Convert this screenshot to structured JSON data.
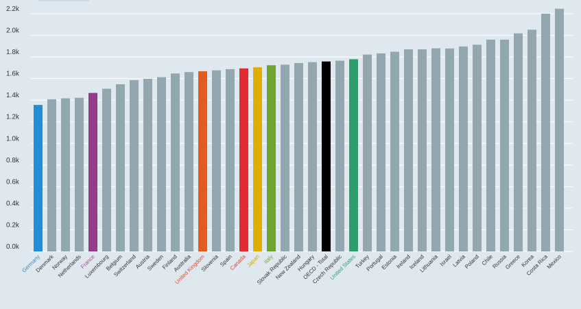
{
  "chart_data": {
    "type": "bar",
    "title": "",
    "xlabel": "",
    "ylabel": "",
    "ylim": [
      0,
      2200
    ],
    "grid": true,
    "y_ticks": [
      {
        "value": 0,
        "label": "0.0k"
      },
      {
        "value": 200,
        "label": "0.2k"
      },
      {
        "value": 400,
        "label": "0.4k"
      },
      {
        "value": 600,
        "label": "0.6k"
      },
      {
        "value": 800,
        "label": "0.8k"
      },
      {
        "value": 1000,
        "label": "1.0k"
      },
      {
        "value": 1200,
        "label": "1.2k"
      },
      {
        "value": 1400,
        "label": "1.4k"
      },
      {
        "value": 1600,
        "label": "1.6k"
      },
      {
        "value": 1800,
        "label": "1.8k"
      },
      {
        "value": 2000,
        "label": "2.0k"
      },
      {
        "value": 2200,
        "label": "2.2k"
      }
    ],
    "categories": [
      "Germany",
      "Denmark",
      "Norway",
      "Netherlands",
      "France",
      "Luxembourg",
      "Belgium",
      "Switzerland",
      "Austria",
      "Sweden",
      "Finland",
      "Australia",
      "United Kingdom",
      "Slovenia",
      "Spain",
      "Canada",
      "Japan",
      "Italy",
      "Slovak Republic",
      "New Zealand",
      "Hungary",
      "OECD - Total",
      "Czech Republic",
      "United States",
      "Turkey",
      "Portugal",
      "Estonia",
      "Ireland",
      "Iceland",
      "Lithuania",
      "Israel",
      "Latvia",
      "Poland",
      "Chile",
      "Russia",
      "Greece",
      "Korea",
      "Costa Rica",
      "Mexico"
    ],
    "values": [
      1356,
      1408,
      1417,
      1422,
      1467,
      1506,
      1547,
      1585,
      1598,
      1613,
      1647,
      1660,
      1667,
      1676,
      1687,
      1694,
      1704,
      1723,
      1728,
      1744,
      1752,
      1758,
      1765,
      1779,
      1822,
      1833,
      1848,
      1870,
      1870,
      1880,
      1878,
      1897,
      1913,
      1960,
      1960,
      2018,
      2052,
      2200,
      2246
    ],
    "highlight_colors": {
      "Germany": "#1f8ed6",
      "France": "#943b8b",
      "United Kingdom": "#e35b1f",
      "Canada": "#e12c31",
      "Japan": "#e0ac06",
      "Italy": "#6fa42d",
      "OECD - Total": "#000000",
      "United States": "#2ba06b"
    },
    "default_bar_color": "#93a7b1",
    "label_colors": {
      "Germany": "#2f8fd6",
      "France": "#b2479e",
      "United Kingdom": "#e24a32",
      "Canada": "#e0403a",
      "Japan": "#d9a800",
      "Italy": "#78a832",
      "United States": "#2aa46c"
    },
    "default_label_color": "#333333"
  }
}
